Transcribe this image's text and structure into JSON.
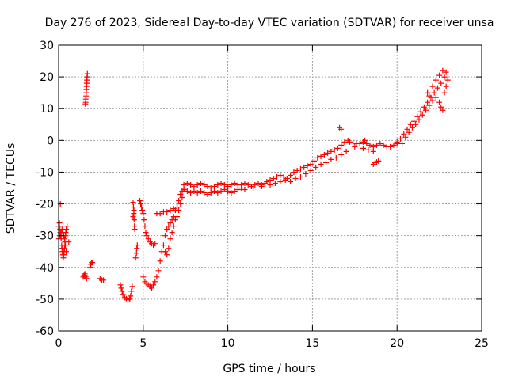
{
  "chart_data": {
    "type": "scatter",
    "title": "Day 276 of 2023, Sidereal Day-to-day VTEC variation (SDTVAR) for receiver unsa",
    "xlabel": "GPS time / hours",
    "ylabel": "SDTVAR / TECUs",
    "xlim": [
      0,
      25
    ],
    "ylim": [
      -60,
      30
    ],
    "xticks": [
      0,
      5,
      10,
      15,
      20,
      25
    ],
    "yticks": [
      -60,
      -50,
      -40,
      -30,
      -20,
      -10,
      0,
      10,
      20,
      30
    ],
    "grid": true,
    "marker": "+",
    "colors": {
      "series": "#ff0000",
      "grid": "#a0a0a0",
      "axis": "#000000"
    },
    "series": [
      {
        "name": "SDTVAR",
        "points": [
          [
            0.0,
            -27
          ],
          [
            0.05,
            -26
          ],
          [
            0.08,
            -28
          ],
          [
            0.1,
            -29
          ],
          [
            0.12,
            -30
          ],
          [
            0.15,
            -31
          ],
          [
            0.18,
            -33
          ],
          [
            0.2,
            -34
          ],
          [
            0.22,
            -35
          ],
          [
            0.25,
            -36
          ],
          [
            0.28,
            -37
          ],
          [
            0.3,
            -36
          ],
          [
            0.32,
            -35
          ],
          [
            0.35,
            -34
          ],
          [
            0.37,
            -32
          ],
          [
            0.4,
            -30
          ],
          [
            0.42,
            -29
          ],
          [
            0.45,
            -28
          ],
          [
            0.5,
            -27
          ],
          [
            0.1,
            -20
          ],
          [
            0.02,
            -31
          ],
          [
            0.06,
            -30
          ],
          [
            0.15,
            -29
          ],
          [
            0.2,
            -28
          ],
          [
            0.25,
            -29
          ],
          [
            0.3,
            -30
          ],
          [
            0.35,
            -31
          ],
          [
            0.4,
            -33
          ],
          [
            0.45,
            -35
          ],
          [
            0.6,
            -32
          ],
          [
            1.45,
            -43
          ],
          [
            1.5,
            -42.5
          ],
          [
            1.55,
            -42
          ],
          [
            1.6,
            -43
          ],
          [
            1.65,
            -43.5
          ],
          [
            1.55,
            -42.5
          ],
          [
            1.6,
            12
          ],
          [
            1.6,
            13
          ],
          [
            1.62,
            14
          ],
          [
            1.63,
            15
          ],
          [
            1.64,
            16
          ],
          [
            1.65,
            17
          ],
          [
            1.66,
            18
          ],
          [
            1.67,
            19
          ],
          [
            1.68,
            20
          ],
          [
            1.7,
            21
          ],
          [
            1.58,
            11.5
          ],
          [
            1.85,
            -40
          ],
          [
            1.9,
            -39
          ],
          [
            1.95,
            -38.5
          ],
          [
            2.0,
            -38.5
          ],
          [
            2.45,
            -43.5
          ],
          [
            2.55,
            -44
          ],
          [
            2.65,
            -44
          ],
          [
            3.65,
            -45.5
          ],
          [
            3.7,
            -46.5
          ],
          [
            3.75,
            -47.5
          ],
          [
            3.8,
            -48.5
          ],
          [
            3.9,
            -49.5
          ],
          [
            4.0,
            -49.8
          ],
          [
            4.1,
            -50.2
          ],
          [
            4.2,
            -50
          ],
          [
            4.25,
            -49
          ],
          [
            4.3,
            -47.5
          ],
          [
            4.35,
            -46
          ],
          [
            4.4,
            -19.5
          ],
          [
            4.42,
            -21
          ],
          [
            4.44,
            -23
          ],
          [
            4.46,
            -25
          ],
          [
            4.48,
            -27
          ],
          [
            4.5,
            -28
          ],
          [
            4.45,
            -22
          ],
          [
            4.4,
            -24
          ],
          [
            4.55,
            -37
          ],
          [
            4.6,
            -35.5
          ],
          [
            4.62,
            -34
          ],
          [
            4.65,
            -33
          ],
          [
            4.8,
            -19
          ],
          [
            4.85,
            -20
          ],
          [
            4.9,
            -21
          ],
          [
            4.95,
            -22
          ],
          [
            5.0,
            -23
          ],
          [
            5.05,
            -25
          ],
          [
            5.1,
            -27
          ],
          [
            5.15,
            -29
          ],
          [
            5.2,
            -30
          ],
          [
            5.3,
            -31
          ],
          [
            5.4,
            -32
          ],
          [
            5.5,
            -32.5
          ],
          [
            5.6,
            -33
          ],
          [
            5.7,
            -32.5
          ],
          [
            5.0,
            -43
          ],
          [
            5.1,
            -44.5
          ],
          [
            5.2,
            -45
          ],
          [
            5.3,
            -45.5
          ],
          [
            5.4,
            -46
          ],
          [
            5.5,
            -46.5
          ],
          [
            5.6,
            -45.5
          ],
          [
            5.7,
            -44.5
          ],
          [
            5.8,
            -43
          ],
          [
            5.9,
            -41
          ],
          [
            6.0,
            -38
          ],
          [
            6.1,
            -35
          ],
          [
            6.2,
            -33
          ],
          [
            6.3,
            -30
          ],
          [
            6.4,
            -28
          ],
          [
            6.5,
            -27
          ],
          [
            6.6,
            -26
          ],
          [
            6.7,
            -25
          ],
          [
            6.8,
            -24
          ],
          [
            6.9,
            -22
          ],
          [
            7.0,
            -21
          ],
          [
            7.1,
            -19
          ],
          [
            7.2,
            -17
          ],
          [
            7.3,
            -16
          ],
          [
            7.4,
            -15.5
          ],
          [
            5.8,
            -23
          ],
          [
            6.0,
            -23
          ],
          [
            6.2,
            -22.5
          ],
          [
            6.4,
            -22.5
          ],
          [
            6.6,
            -22
          ],
          [
            6.8,
            -21.5
          ],
          [
            7.0,
            -21
          ],
          [
            6.3,
            -35
          ],
          [
            6.4,
            -36
          ],
          [
            6.5,
            -34
          ],
          [
            6.6,
            -31
          ],
          [
            6.7,
            -29
          ],
          [
            6.8,
            -27
          ],
          [
            6.9,
            -25
          ],
          [
            7.0,
            -24
          ],
          [
            7.1,
            -22
          ],
          [
            7.2,
            -20
          ],
          [
            7.3,
            -18
          ],
          [
            7.4,
            -14
          ],
          [
            7.6,
            -13.5
          ],
          [
            7.8,
            -14
          ],
          [
            8.0,
            -14.5
          ],
          [
            8.2,
            -14
          ],
          [
            8.4,
            -13.5
          ],
          [
            8.6,
            -14
          ],
          [
            8.8,
            -14.5
          ],
          [
            9.0,
            -15
          ],
          [
            9.2,
            -14.5
          ],
          [
            9.4,
            -14
          ],
          [
            9.6,
            -13.5
          ],
          [
            9.8,
            -14
          ],
          [
            10.0,
            -14.5
          ],
          [
            10.2,
            -14
          ],
          [
            10.4,
            -13.5
          ],
          [
            10.6,
            -14
          ],
          [
            10.8,
            -14
          ],
          [
            11.0,
            -13.5
          ],
          [
            11.2,
            -14
          ],
          [
            11.4,
            -14.5
          ],
          [
            11.6,
            -14
          ],
          [
            11.8,
            -13.5
          ],
          [
            12.0,
            -14
          ],
          [
            12.2,
            -13.5
          ],
          [
            7.4,
            -15.5
          ],
          [
            7.6,
            -16
          ],
          [
            7.8,
            -16.5
          ],
          [
            8.0,
            -16
          ],
          [
            8.2,
            -16.5
          ],
          [
            8.4,
            -16
          ],
          [
            8.6,
            -16.5
          ],
          [
            8.8,
            -17
          ],
          [
            9.0,
            -16.5
          ],
          [
            9.2,
            -16
          ],
          [
            9.4,
            -16.5
          ],
          [
            9.6,
            -16
          ],
          [
            9.8,
            -15.5
          ],
          [
            10.0,
            -16
          ],
          [
            10.2,
            -16.5
          ],
          [
            10.4,
            -16
          ],
          [
            10.6,
            -15.5
          ],
          [
            10.8,
            -15
          ],
          [
            11.0,
            -15.5
          ],
          [
            11.5,
            -15
          ],
          [
            12.0,
            -14.5
          ],
          [
            12.3,
            -13
          ],
          [
            12.5,
            -12.5
          ],
          [
            12.7,
            -12
          ],
          [
            12.9,
            -11.5
          ],
          [
            13.1,
            -11
          ],
          [
            13.3,
            -11.5
          ],
          [
            13.5,
            -12
          ],
          [
            13.7,
            -11
          ],
          [
            13.9,
            -10
          ],
          [
            14.1,
            -9.5
          ],
          [
            14.3,
            -9
          ],
          [
            14.5,
            -8.5
          ],
          [
            14.7,
            -8
          ],
          [
            14.9,
            -7.5
          ],
          [
            15.1,
            -6.5
          ],
          [
            15.3,
            -5.5
          ],
          [
            15.5,
            -5
          ],
          [
            15.7,
            -4.5
          ],
          [
            15.9,
            -4
          ],
          [
            16.1,
            -3.5
          ],
          [
            16.3,
            -3
          ],
          [
            16.5,
            -2.5
          ],
          [
            16.7,
            -1.5
          ],
          [
            16.9,
            -0.5
          ],
          [
            17.1,
            0
          ],
          [
            12.5,
            -14
          ],
          [
            12.8,
            -13.5
          ],
          [
            13.1,
            -13
          ],
          [
            13.4,
            -12.5
          ],
          [
            13.7,
            -13
          ],
          [
            14.0,
            -12
          ],
          [
            14.3,
            -11.5
          ],
          [
            14.6,
            -10.5
          ],
          [
            14.9,
            -9.5
          ],
          [
            15.2,
            -8.5
          ],
          [
            15.5,
            -7.5
          ],
          [
            15.8,
            -7
          ],
          [
            16.1,
            -6
          ],
          [
            16.4,
            -5.5
          ],
          [
            16.7,
            -4.5
          ],
          [
            17.0,
            -3.5
          ],
          [
            16.6,
            4
          ],
          [
            16.7,
            3.5
          ],
          [
            17.2,
            -0.5
          ],
          [
            17.4,
            -0.8
          ],
          [
            17.6,
            -1
          ],
          [
            17.8,
            -1
          ],
          [
            18.0,
            -0.5
          ],
          [
            18.2,
            -1
          ],
          [
            18.4,
            -1.5
          ],
          [
            18.6,
            -2
          ],
          [
            18.8,
            -1.5
          ],
          [
            19.0,
            -1
          ],
          [
            19.2,
            -1.5
          ],
          [
            19.4,
            -2
          ],
          [
            19.6,
            -2
          ],
          [
            19.8,
            -1.5
          ],
          [
            20.0,
            -0.5
          ],
          [
            18.0,
            -2.5
          ],
          [
            18.3,
            -3
          ],
          [
            18.6,
            -3.5
          ],
          [
            17.5,
            -2
          ],
          [
            18.1,
            0
          ],
          [
            18.6,
            -7.5
          ],
          [
            18.7,
            -7
          ],
          [
            18.8,
            -6.8
          ],
          [
            18.9,
            -6.5
          ],
          [
            20.0,
            -1
          ],
          [
            20.2,
            0.5
          ],
          [
            20.4,
            2
          ],
          [
            20.6,
            3.5
          ],
          [
            20.8,
            5
          ],
          [
            21.0,
            6
          ],
          [
            21.2,
            7.5
          ],
          [
            21.4,
            9
          ],
          [
            21.6,
            10.5
          ],
          [
            21.8,
            12
          ],
          [
            22.0,
            13.5
          ],
          [
            22.2,
            15
          ],
          [
            22.4,
            16.5
          ],
          [
            22.6,
            18
          ],
          [
            22.8,
            20
          ],
          [
            22.9,
            21.5
          ],
          [
            22.7,
            22
          ],
          [
            22.5,
            20.5
          ],
          [
            22.3,
            19
          ],
          [
            22.1,
            17
          ],
          [
            20.3,
            -1
          ],
          [
            20.5,
            1
          ],
          [
            20.7,
            2.5
          ],
          [
            20.9,
            4
          ],
          [
            21.1,
            5
          ],
          [
            21.3,
            6.5
          ],
          [
            21.5,
            8
          ],
          [
            21.7,
            9.5
          ],
          [
            21.9,
            11
          ],
          [
            22.1,
            12.5
          ],
          [
            22.3,
            13.5
          ],
          [
            22.5,
            12
          ],
          [
            22.6,
            10.5
          ],
          [
            22.7,
            9.5
          ],
          [
            22.8,
            15
          ],
          [
            22.9,
            17
          ],
          [
            23.0,
            19
          ],
          [
            21.8,
            15
          ],
          [
            21.9,
            14
          ]
        ]
      }
    ]
  }
}
